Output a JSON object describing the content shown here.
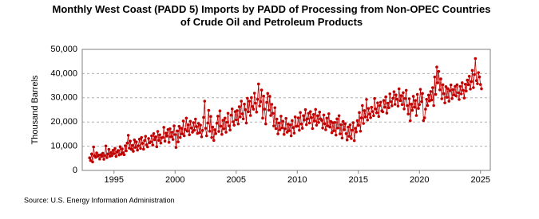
{
  "chart_data": {
    "type": "line",
    "title": "Monthly West Coast (PADD 5) Imports by PADD of Processing from Non-OPEC Countries of Crude Oil and Petroleum Products",
    "y_label": "Thousand Barrels",
    "source": "Source: U.S. Energy Information Administration",
    "color": "#c00000",
    "grid": true,
    "xlim": [
      1992.4,
      2025.8
    ],
    "xticks": [
      1995,
      2000,
      2005,
      2010,
      2015,
      2020,
      2025
    ],
    "ylim": [
      0,
      50000
    ],
    "yticks": [
      {
        "value": 0,
        "label": "0"
      },
      {
        "value": 10000,
        "label": "10,000"
      },
      {
        "value": 20000,
        "label": "20,000"
      },
      {
        "value": 30000,
        "label": "30,000"
      },
      {
        "value": 40000,
        "label": "40,000"
      },
      {
        "value": 50000,
        "label": "50,000"
      }
    ],
    "x": [
      1993,
      1993.08,
      1993.17,
      1993.25,
      1993.33,
      1993.42,
      1993.5,
      1993.58,
      1993.67,
      1993.75,
      1993.83,
      1993.92,
      1994,
      1994.08,
      1994.17,
      1994.25,
      1994.33,
      1994.42,
      1994.5,
      1994.58,
      1994.67,
      1994.75,
      1994.83,
      1994.92,
      1995,
      1995.08,
      1995.17,
      1995.25,
      1995.33,
      1995.42,
      1995.5,
      1995.58,
      1995.67,
      1995.75,
      1995.83,
      1995.92,
      1996,
      1996.08,
      1996.17,
      1996.25,
      1996.33,
      1996.42,
      1996.5,
      1996.58,
      1996.67,
      1996.75,
      1996.83,
      1996.92,
      1997,
      1997.08,
      1997.17,
      1997.25,
      1997.33,
      1997.42,
      1997.5,
      1997.58,
      1997.67,
      1997.75,
      1997.83,
      1997.92,
      1998,
      1998.08,
      1998.17,
      1998.25,
      1998.33,
      1998.42,
      1998.5,
      1998.58,
      1998.67,
      1998.75,
      1998.83,
      1998.92,
      1999,
      1999.08,
      1999.17,
      1999.25,
      1999.33,
      1999.42,
      1999.5,
      1999.58,
      1999.67,
      1999.75,
      1999.83,
      1999.92,
      2000,
      2000.08,
      2000.17,
      2000.25,
      2000.33,
      2000.42,
      2000.5,
      2000.58,
      2000.67,
      2000.75,
      2000.83,
      2000.92,
      2001,
      2001.08,
      2001.17,
      2001.25,
      2001.33,
      2001.42,
      2001.5,
      2001.58,
      2001.67,
      2001.75,
      2001.83,
      2001.92,
      2002,
      2002.08,
      2002.17,
      2002.25,
      2002.33,
      2002.42,
      2002.5,
      2002.58,
      2002.67,
      2002.75,
      2002.83,
      2002.92,
      2003,
      2003.08,
      2003.17,
      2003.25,
      2003.33,
      2003.42,
      2003.5,
      2003.58,
      2003.67,
      2003.75,
      2003.83,
      2003.92,
      2004,
      2004.08,
      2004.17,
      2004.25,
      2004.33,
      2004.42,
      2004.5,
      2004.58,
      2004.67,
      2004.75,
      2004.83,
      2004.92,
      2005,
      2005.08,
      2005.17,
      2005.25,
      2005.33,
      2005.42,
      2005.5,
      2005.58,
      2005.67,
      2005.75,
      2005.83,
      2005.92,
      2006,
      2006.08,
      2006.17,
      2006.25,
      2006.33,
      2006.42,
      2006.5,
      2006.58,
      2006.67,
      2006.75,
      2006.83,
      2006.92,
      2007,
      2007.08,
      2007.17,
      2007.25,
      2007.33,
      2007.42,
      2007.5,
      2007.58,
      2007.67,
      2007.75,
      2007.83,
      2007.92,
      2008,
      2008.08,
      2008.17,
      2008.25,
      2008.33,
      2008.42,
      2008.5,
      2008.58,
      2008.67,
      2008.75,
      2008.83,
      2008.92,
      2009,
      2009.08,
      2009.17,
      2009.25,
      2009.33,
      2009.42,
      2009.5,
      2009.58,
      2009.67,
      2009.75,
      2009.83,
      2009.92,
      2010,
      2010.08,
      2010.17,
      2010.25,
      2010.33,
      2010.42,
      2010.5,
      2010.58,
      2010.67,
      2010.75,
      2010.83,
      2010.92,
      2011,
      2011.08,
      2011.17,
      2011.25,
      2011.33,
      2011.42,
      2011.5,
      2011.58,
      2011.67,
      2011.75,
      2011.83,
      2011.92,
      2012,
      2012.08,
      2012.17,
      2012.25,
      2012.33,
      2012.42,
      2012.5,
      2012.58,
      2012.67,
      2012.75,
      2012.83,
      2012.92,
      2013,
      2013.08,
      2013.17,
      2013.25,
      2013.33,
      2013.42,
      2013.5,
      2013.58,
      2013.67,
      2013.75,
      2013.83,
      2013.92,
      2014,
      2014.08,
      2014.17,
      2014.25,
      2014.33,
      2014.42,
      2014.5,
      2014.58,
      2014.67,
      2014.75,
      2014.83,
      2014.92,
      2015,
      2015.08,
      2015.17,
      2015.25,
      2015.33,
      2015.42,
      2015.5,
      2015.58,
      2015.67,
      2015.75,
      2015.83,
      2015.92,
      2016,
      2016.08,
      2016.17,
      2016.25,
      2016.33,
      2016.42,
      2016.5,
      2016.58,
      2016.67,
      2016.75,
      2016.83,
      2016.92,
      2017,
      2017.08,
      2017.17,
      2017.25,
      2017.33,
      2017.42,
      2017.5,
      2017.58,
      2017.67,
      2017.75,
      2017.83,
      2017.92,
      2018,
      2018.08,
      2018.17,
      2018.25,
      2018.33,
      2018.42,
      2018.5,
      2018.58,
      2018.67,
      2018.75,
      2018.83,
      2018.92,
      2019,
      2019.08,
      2019.17,
      2019.25,
      2019.33,
      2019.42,
      2019.5,
      2019.58,
      2019.67,
      2019.75,
      2019.83,
      2019.92,
      2020,
      2020.08,
      2020.17,
      2020.25,
      2020.33,
      2020.42,
      2020.5,
      2020.58,
      2020.67,
      2020.75,
      2020.83,
      2020.92,
      2021,
      2021.08,
      2021.17,
      2021.25,
      2021.33,
      2021.42,
      2021.5,
      2021.58,
      2021.67,
      2021.75,
      2021.83,
      2021.92,
      2022,
      2022.08,
      2022.17,
      2022.25,
      2022.33,
      2022.42,
      2022.5,
      2022.58,
      2022.67,
      2022.75,
      2022.83,
      2022.92,
      2023,
      2023.08,
      2023.17,
      2023.25,
      2023.33,
      2023.42,
      2023.5,
      2023.58,
      2023.67,
      2023.75,
      2023.83,
      2023.92,
      2024,
      2024.08,
      2024.17,
      2024.25,
      2024.33,
      2024.42,
      2024.5,
      2024.58,
      2024.67,
      2024.75,
      2024.83,
      2024.92,
      2025,
      2025.08
    ],
    "values": [
      5200,
      4100,
      6800,
      3500,
      9700,
      6100,
      5400,
      7200,
      5900,
      6300,
      4700,
      6500,
      5800,
      7100,
      4600,
      6200,
      10100,
      5300,
      6800,
      8700,
      5900,
      7400,
      6100,
      8300,
      6900,
      9100,
      5800,
      7600,
      8200,
      6400,
      9800,
      6700,
      8900,
      7300,
      6500,
      10200,
      8100,
      11300,
      14500,
      9200,
      12100,
      8700,
      10400,
      7900,
      12600,
      9500,
      11800,
      8400,
      10200,
      12900,
      9100,
      13600,
      11200,
      8800,
      12300,
      14100,
      10600,
      9700,
      13200,
      11400,
      11800,
      14300,
      10500,
      15200,
      12700,
      13900,
      9800,
      16100,
      12400,
      14700,
      11300,
      13500,
      13600,
      17800,
      12100,
      15400,
      14200,
      16900,
      11600,
      17200,
      13900,
      15800,
      12800,
      18400,
      14800,
      9500,
      16300,
      11800,
      18200,
      13600,
      17400,
      15100,
      20400,
      14300,
      16900,
      21600,
      16200,
      18900,
      14700,
      20300,
      17500,
      15800,
      19700,
      16600,
      21200,
      18100,
      15300,
      19400,
      15600,
      18700,
      13900,
      16500,
      21900,
      28600,
      17400,
      14300,
      19600,
      24800,
      16200,
      22300,
      13600,
      17900,
      12400,
      16800,
      15200,
      19500,
      22400,
      16100,
      24600,
      18300,
      14900,
      20700,
      17200,
      21600,
      15800,
      19900,
      23600,
      18400,
      16700,
      22800,
      25400,
      20100,
      18700,
      24300,
      20900,
      24700,
      19200,
      26300,
      22100,
      28600,
      23400,
      21300,
      27400,
      25100,
      19600,
      29800,
      24200,
      28600,
      22700,
      30100,
      26400,
      25300,
      31900,
      27800,
      24100,
      29400,
      35700,
      26600,
      28400,
      33200,
      21600,
      30700,
      25300,
      19200,
      28100,
      31800,
      24900,
      30600,
      22700,
      27300,
      23600,
      18400,
      25900,
      17300,
      21200,
      15100,
      19600,
      16800,
      22400,
      17600,
      20300,
      14900,
      17200,
      21500,
      15800,
      19100,
      16400,
      18800,
      14300,
      20600,
      17700,
      15400,
      22100,
      18200,
      18300,
      21700,
      16600,
      23900,
      19200,
      17400,
      22600,
      20800,
      25100,
      18900,
      21300,
      23600,
      19600,
      24300,
      21800,
      17300,
      23100,
      20400,
      25200,
      18700,
      22600,
      19800,
      24100,
      21300,
      20700,
      17500,
      22900,
      19300,
      16800,
      21600,
      18400,
      23400,
      17900,
      20200,
      15600,
      19700,
      16400,
      19800,
      14600,
      21300,
      17500,
      22600,
      15100,
      18900,
      13400,
      20200,
      16800,
      19300,
      15200,
      12600,
      17900,
      14100,
      18800,
      13200,
      16600,
      19700,
      12300,
      17400,
      15900,
      20600,
      18600,
      23900,
      16200,
      21700,
      26800,
      19400,
      24700,
      22100,
      29300,
      20800,
      25600,
      23200,
      21800,
      26100,
      24300,
      22600,
      29700,
      25400,
      23800,
      27900,
      22300,
      26800,
      28200,
      24600,
      24200,
      28900,
      26100,
      30400,
      23700,
      27800,
      25900,
      31600,
      28400,
      26700,
      29800,
      32500,
      27300,
      31200,
      29400,
      26600,
      33700,
      28800,
      30900,
      27200,
      32100,
      25400,
      29700,
      33100,
      26800,
      23300,
      29600,
      20500,
      27400,
      24800,
      30600,
      26100,
      28900,
      22700,
      31400,
      25600,
      27200,
      33500,
      28400,
      31800,
      20600,
      21700,
      25300,
      29400,
      26800,
      31100,
      28700,
      32600,
      29100,
      34200,
      26800,
      38600,
      31400,
      42700,
      36200,
      40900,
      33300,
      37800,
      29600,
      35400,
      31700,
      27900,
      34600,
      30200,
      33800,
      28600,
      32900,
      35300,
      29700,
      33400,
      31200,
      34700,
      30800,
      35400,
      32100,
      29300,
      34700,
      31600,
      36200,
      33100,
      29900,
      35600,
      32800,
      37300,
      35400,
      38900,
      33600,
      36700,
      41300,
      34200,
      39600,
      46200,
      37100,
      35800,
      40400,
      38600,
      35500,
      33700
    ]
  }
}
